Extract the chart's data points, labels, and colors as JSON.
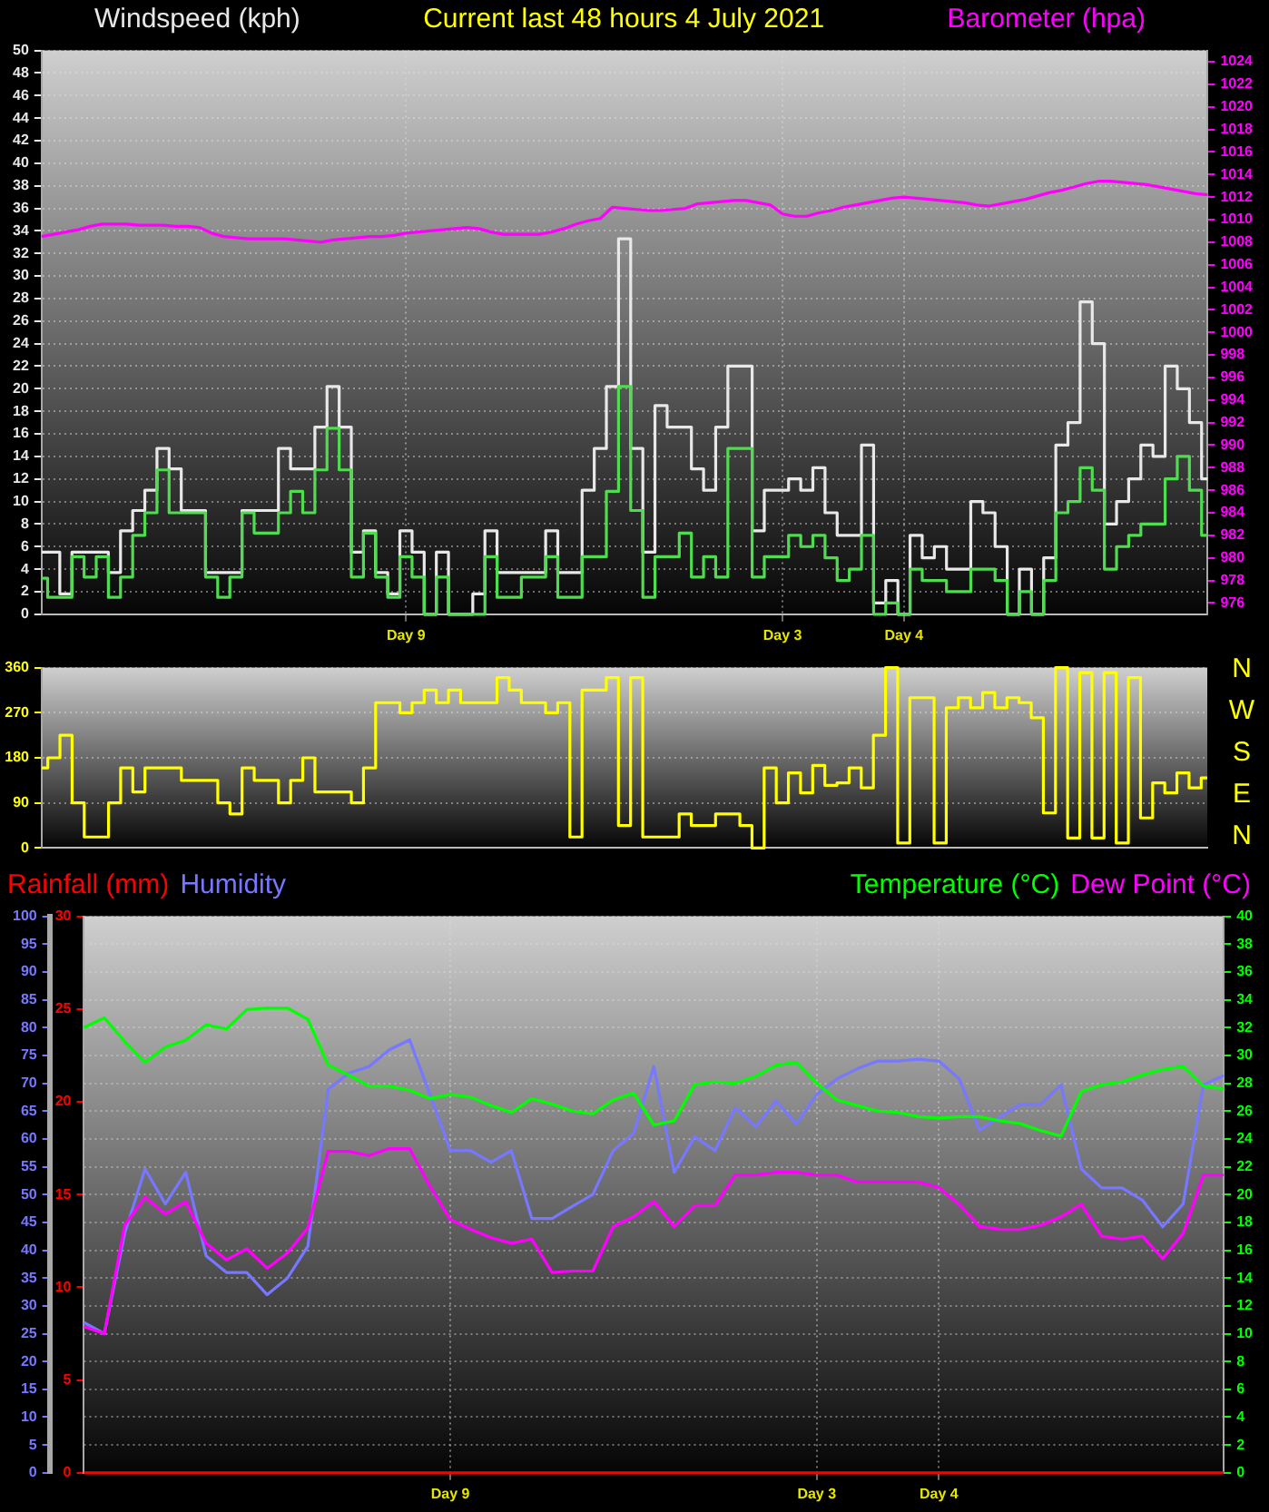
{
  "chart_data": [
    {
      "type": "step",
      "title": "Current last 48 hours 4 July 2021",
      "ylabel": "Windspeed (kph)",
      "y2label": "Barometer (hpa)",
      "categories": [
        null,
        null,
        null,
        null,
        null,
        null,
        null,
        null,
        null,
        null,
        null,
        null,
        null,
        null,
        null,
        null,
        null,
        null,
        null,
        null,
        null,
        null,
        null,
        null,
        null,
        null,
        null,
        null,
        null,
        null,
        "Day 9",
        null,
        null,
        null,
        null,
        null,
        null,
        null,
        null,
        null,
        null,
        null,
        null,
        null,
        null,
        null,
        null,
        null,
        null,
        null,
        null,
        null,
        null,
        null,
        null,
        null,
        null,
        null,
        null,
        null,
        null,
        "Day 3",
        null,
        null,
        null,
        null,
        null,
        null,
        null,
        null,
        null,
        "Day 4",
        null,
        null,
        null,
        null,
        null,
        null,
        null,
        null,
        null,
        null,
        null,
        null,
        null,
        null,
        null,
        null,
        null,
        null,
        null,
        null,
        null,
        null,
        null,
        null,
        null
      ],
      "ylim": [
        0,
        50
      ],
      "yticks": [
        0,
        2,
        4,
        6,
        8,
        10,
        12,
        14,
        16,
        18,
        20,
        22,
        24,
        26,
        28,
        30,
        32,
        34,
        36,
        38,
        40,
        42,
        44,
        46,
        48,
        50
      ],
      "y2lim": [
        975,
        1025
      ],
      "y2ticks": [
        976,
        978,
        980,
        982,
        984,
        986,
        988,
        990,
        992,
        994,
        996,
        998,
        1000,
        1002,
        1004,
        1006,
        1008,
        1010,
        1012,
        1014,
        1016,
        1018,
        1020,
        1022,
        1024
      ],
      "grid": true,
      "series": [
        {
          "color": "#e8e8e8",
          "values": [
            5.5,
            5.5,
            1.8,
            5.5,
            5.5,
            5.5,
            3.7,
            7.4,
            9.2,
            11,
            14.7,
            12.9,
            9.2,
            9.2,
            3.7,
            3.7,
            3.7,
            9.2,
            9.2,
            9.2,
            14.7,
            12.9,
            12.9,
            16.6,
            20.2,
            16.6,
            5.5,
            7.4,
            3.7,
            1.8,
            7.4,
            5.5,
            0,
            5.5,
            0,
            0,
            1.8,
            7.4,
            3.7,
            3.7,
            3.7,
            3.7,
            7.4,
            3.7,
            3.7,
            11,
            14.7,
            20.2,
            33.3,
            14.7,
            5.5,
            18.5,
            16.6,
            16.6,
            12.9,
            11,
            16.6,
            22,
            22,
            7.4,
            11,
            11,
            12,
            11,
            13,
            9,
            7,
            7,
            15,
            1,
            3,
            0,
            7,
            5,
            6,
            4,
            4,
            10,
            9,
            6,
            0,
            4,
            0,
            5,
            15,
            17,
            27.7,
            24,
            8,
            10,
            12,
            15,
            14,
            22,
            20,
            17,
            12
          ]
        },
        {
          "color": "#4fdc4f",
          "values": [
            3.2,
            1.5,
            1.5,
            5.1,
            3.3,
            5.1,
            1.5,
            3.3,
            7,
            9,
            12.8,
            9,
            9,
            9,
            3.3,
            1.5,
            3.3,
            9,
            7.2,
            7.2,
            9,
            10.9,
            9,
            12.8,
            16.5,
            12.8,
            3.3,
            7.2,
            3.3,
            1.5,
            5.1,
            3.3,
            0,
            3.3,
            0,
            0,
            0,
            5.1,
            1.5,
            1.5,
            3.3,
            3.3,
            5.1,
            1.5,
            1.5,
            5.1,
            5.1,
            10.9,
            20.2,
            9.2,
            1.5,
            5.1,
            5.1,
            7.2,
            3.3,
            5.1,
            3.3,
            14.7,
            14.7,
            3.3,
            5.1,
            5.1,
            7,
            6,
            7,
            5,
            3,
            4,
            7,
            0,
            1,
            0,
            4,
            3,
            3,
            2,
            2,
            4,
            4,
            3,
            0,
            2,
            0,
            3,
            9,
            10,
            13,
            11,
            4,
            6,
            7,
            8,
            8,
            12,
            14,
            11,
            7
          ]
        },
        {
          "type": "line",
          "axis": "y2",
          "color": "#ff00ff",
          "values": [
            1008.5,
            1008.7,
            1008.9,
            1009.1,
            1009.4,
            1009.6,
            1009.6,
            1009.6,
            1009.5,
            1009.5,
            1009.5,
            1009.4,
            1009.4,
            1009.3,
            1008.8,
            1008.5,
            1008.4,
            1008.3,
            1008.3,
            1008.3,
            1008.3,
            1008.2,
            1008.1,
            1008,
            1008.2,
            1008.3,
            1008.4,
            1008.5,
            1008.5,
            1008.6,
            1008.8,
            1008.9,
            1009,
            1009.1,
            1009.2,
            1009.3,
            1009.2,
            1008.9,
            1008.7,
            1008.7,
            1008.7,
            1008.7,
            1008.9,
            1009.2,
            1009.6,
            1009.9,
            1010.1,
            1011.1,
            1011,
            1010.9,
            1010.8,
            1010.8,
            1010.9,
            1011,
            1011.4,
            1011.5,
            1011.6,
            1011.7,
            1011.7,
            1011.5,
            1011.3,
            1010.5,
            1010.3,
            1010.3,
            1010.6,
            1010.8,
            1011.1,
            1011.3,
            1011.5,
            1011.7,
            1011.9,
            1012,
            1011.9,
            1011.8,
            1011.7,
            1011.6,
            1011.5,
            1011.3,
            1011.2,
            1011.4,
            1011.6,
            1011.8,
            1012.1,
            1012.4,
            1012.6,
            1012.9,
            1013.2,
            1013.4,
            1013.4,
            1013.3,
            1013.2,
            1013.1,
            1012.9,
            1012.7,
            1012.5,
            1012.3,
            1012.2
          ]
        }
      ]
    },
    {
      "type": "step",
      "categories": [
        null,
        null,
        null,
        null,
        null,
        null,
        null,
        null,
        null,
        null,
        null,
        null,
        null,
        null,
        null,
        null,
        null,
        null,
        null,
        null,
        null,
        null,
        null,
        null,
        null,
        null,
        null,
        null,
        null,
        null,
        null,
        null,
        null,
        null,
        null,
        null,
        null,
        null,
        null,
        null,
        null,
        null,
        null,
        null,
        null,
        null,
        null,
        null,
        null,
        null,
        null,
        null,
        null,
        null,
        null,
        null,
        null,
        null,
        null,
        null,
        null,
        null,
        null,
        null,
        null,
        null,
        null,
        null,
        null,
        null,
        null,
        null,
        null,
        null,
        null,
        null,
        null,
        null,
        null,
        null,
        null,
        null,
        null,
        null,
        null,
        null,
        null,
        null,
        null,
        null,
        null,
        null,
        null,
        null,
        null,
        null,
        null
      ],
      "ylim": [
        0,
        360
      ],
      "yticks": [
        0,
        90,
        180,
        270,
        360
      ],
      "annotations": [
        "N",
        "W",
        "S",
        "E",
        "N"
      ],
      "grid": "y",
      "tick_labels": "y",
      "series": [
        {
          "color": "#ffff00",
          "values": [
            160,
            180,
            225,
            90,
            22,
            22,
            90,
            160,
            112,
            160,
            160,
            160,
            135,
            135,
            135,
            90,
            68,
            160,
            135,
            135,
            90,
            135,
            180,
            112,
            112,
            112,
            90,
            160,
            290,
            290,
            270,
            290,
            315,
            290,
            315,
            290,
            290,
            290,
            340,
            315,
            290,
            290,
            270,
            290,
            22,
            315,
            315,
            340,
            45,
            340,
            22,
            22,
            22,
            68,
            45,
            45,
            68,
            68,
            45,
            0,
            160,
            90,
            150,
            110,
            165,
            125,
            130,
            160,
            120,
            225,
            360,
            10,
            300,
            300,
            10,
            280,
            300,
            280,
            310,
            280,
            300,
            290,
            260,
            70,
            360,
            20,
            350,
            20,
            350,
            10,
            340,
            60,
            130,
            110,
            150,
            120,
            140
          ]
        }
      ]
    },
    {
      "type": "line",
      "legend": "top",
      "categories": [
        null,
        null,
        null,
        null,
        null,
        null,
        null,
        null,
        null,
        null,
        null,
        null,
        null,
        null,
        null,
        null,
        null,
        null,
        "Day 9",
        null,
        null,
        null,
        null,
        null,
        null,
        null,
        null,
        null,
        null,
        null,
        null,
        null,
        null,
        null,
        null,
        null,
        "Day 3",
        null,
        null,
        null,
        null,
        null,
        "Day 4",
        null,
        null,
        null,
        null,
        null,
        null,
        null,
        null,
        null,
        null,
        null,
        null,
        null,
        null
      ],
      "ylim": [
        0,
        30
      ],
      "yticks": [
        0,
        5,
        10,
        15,
        20,
        25,
        30
      ],
      "y2lim": [
        0,
        40
      ],
      "y2ticks": [
        0,
        2,
        4,
        6,
        8,
        10,
        12,
        14,
        16,
        18,
        20,
        22,
        24,
        26,
        28,
        30,
        32,
        34,
        36,
        38,
        40
      ],
      "y3lim": [
        0,
        100
      ],
      "y3ticks": [
        0,
        5,
        10,
        15,
        20,
        25,
        30,
        35,
        40,
        45,
        50,
        55,
        60,
        65,
        70,
        75,
        80,
        85,
        90,
        95,
        100
      ],
      "grid": true,
      "series": [
        {
          "name": "Rainfall (mm)",
          "color": "#ff0000",
          "values": [
            0,
            0,
            0,
            0,
            0,
            0,
            0,
            0,
            0,
            0,
            0,
            0,
            0,
            0,
            0,
            0,
            0,
            0,
            0,
            0,
            0,
            0,
            0,
            0,
            0,
            0,
            0,
            0,
            0,
            0,
            0,
            0,
            0,
            0,
            0,
            0,
            0,
            0,
            0,
            0,
            0,
            0,
            0,
            0,
            0,
            0,
            0,
            0,
            0,
            0,
            0,
            0,
            0,
            0,
            0,
            0,
            0
          ]
        },
        {
          "name": "Humidity",
          "axis": "y3",
          "color": "#7777ff",
          "values": [
            27,
            25,
            43,
            54.6,
            48.3,
            54,
            39,
            36,
            36,
            32,
            35,
            40.7,
            68.9,
            71.8,
            73,
            76,
            77.8,
            68,
            57.9,
            57.9,
            55.8,
            57.9,
            45.7,
            45.7,
            47.9,
            50,
            57.9,
            61,
            73,
            54,
            60.4,
            57.9,
            65.6,
            62.2,
            66.8,
            62.7,
            68,
            70.8,
            72.6,
            74,
            74,
            74.3,
            74,
            70.8,
            61.6,
            63.9,
            66.2,
            66.2,
            69.7,
            54.6,
            51.2,
            51.2,
            49,
            44.2,
            48.3,
            69.7,
            71.4
          ]
        },
        {
          "name": "Temperature (°C)",
          "axis": "y2",
          "color": "#00ff00",
          "values": [
            32.0,
            32.7,
            31.0,
            29.5,
            30.6,
            31.1,
            32.2,
            31.9,
            33.3,
            33.4,
            33.4,
            32.6,
            29.3,
            28.6,
            27.8,
            27.8,
            27.5,
            26.9,
            27.2,
            27.0,
            26.4,
            25.9,
            26.9,
            26.5,
            26.0,
            25.8,
            26.8,
            27.3,
            25.0,
            25.3,
            27.9,
            28.1,
            28.0,
            28.5,
            29.3,
            29.5,
            28.0,
            26.8,
            26.4,
            26.0,
            25.9,
            25.6,
            25.5,
            25.6,
            25.6,
            25.3,
            25.1,
            24.6,
            24.2,
            27.4,
            27.9,
            28.1,
            28.6,
            29.0,
            29.2,
            27.8,
            27.6
          ]
        },
        {
          "name": "Dew Point (°C)",
          "axis": "y2",
          "color": "#ff00ff",
          "values": [
            10.5,
            10,
            17.8,
            19.8,
            18.6,
            19.5,
            16.5,
            15.3,
            16.1,
            14.7,
            15.8,
            17.6,
            23.1,
            23.1,
            22.8,
            23.3,
            23.3,
            20.6,
            18.2,
            17.5,
            16.9,
            16.5,
            16.8,
            14.4,
            14.5,
            14.5,
            17.7,
            18.4,
            19.5,
            17.7,
            19.2,
            19.2,
            21.4,
            21.4,
            21.6,
            21.6,
            21.4,
            21.4,
            20.9,
            20.9,
            20.9,
            20.9,
            20.5,
            19.3,
            17.7,
            17.5,
            17.5,
            17.8,
            18.4,
            19.3,
            17,
            16.8,
            17,
            15.4,
            17.2,
            21.4,
            21.4
          ]
        }
      ]
    }
  ]
}
